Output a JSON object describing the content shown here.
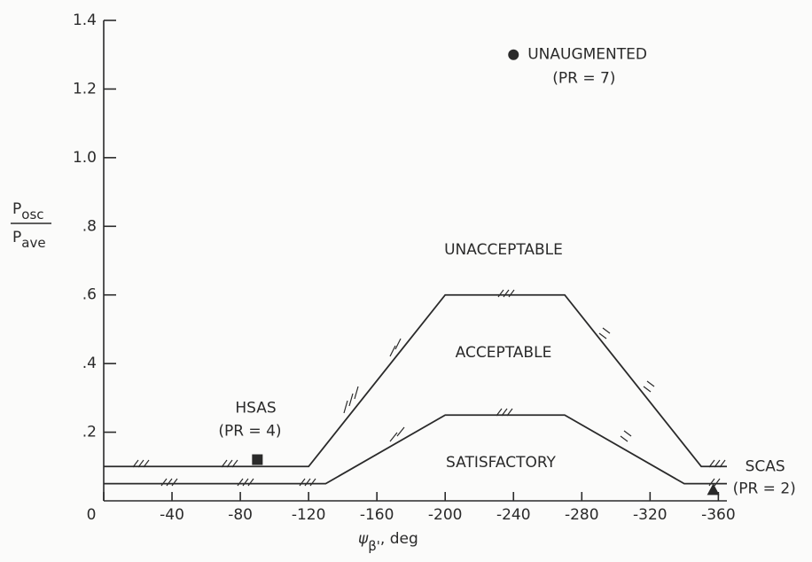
{
  "chart_data": {
    "type": "line",
    "x_label": {
      "symbol": "ψ",
      "subscript": "β'",
      "unit": ", deg"
    },
    "y_label": {
      "numerator": "P",
      "numerator_sub": "osc",
      "denominator": "P",
      "denominator_sub": "ave"
    },
    "xlim": [
      0,
      -365
    ],
    "xticks": [
      0,
      -40,
      -80,
      -120,
      -160,
      -200,
      -240,
      -280,
      -320,
      -360
    ],
    "ylim": [
      0,
      1.4
    ],
    "yticks": [
      {
        "value": 0.2,
        "label": ".2"
      },
      {
        "value": 0.4,
        "label": ".4"
      },
      {
        "value": 0.6,
        "label": ".6"
      },
      {
        "value": 0.8,
        "label": ".8"
      },
      {
        "value": 1.0,
        "label": "1.0"
      },
      {
        "value": 1.2,
        "label": "1.2"
      },
      {
        "value": 1.4,
        "label": "1.4"
      }
    ],
    "boundaries": [
      {
        "x": [
          0,
          -120,
          -200,
          -270,
          -350,
          -365
        ],
        "values": [
          0.1,
          0.1,
          0.6,
          0.6,
          0.1,
          0.1
        ],
        "color": "#2a2a2a"
      },
      {
        "x": [
          0,
          -130,
          -200,
          -270,
          -340,
          -365
        ],
        "values": [
          0.05,
          0.05,
          0.25,
          0.25,
          0.05,
          0.05
        ],
        "color": "#2a2a2a"
      }
    ],
    "regions": [
      "UNACCEPTABLE",
      "ACCEPTABLE",
      "SATISFACTORY"
    ],
    "points": [
      {
        "label": "UNAUGMENTED",
        "note": "(PR = 7)",
        "marker": "circle",
        "x": -240,
        "y": 1.3
      },
      {
        "label": "HSAS",
        "note": "(PR = 4)",
        "marker": "square",
        "x": -90,
        "y": 0.12
      },
      {
        "label": "SCAS",
        "note": "(PR = 2)",
        "marker": "triangle",
        "x": -357,
        "y": 0.03
      }
    ],
    "color": "#2a2a2a"
  }
}
